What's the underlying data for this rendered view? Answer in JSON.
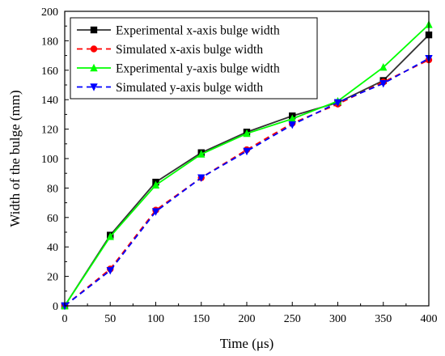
{
  "chart_data": {
    "type": "line",
    "xlabel": "Time (μs)",
    "ylabel": "Width of the bulge (mm)",
    "xlim": [
      0,
      400
    ],
    "ylim": [
      0,
      200
    ],
    "xticks": [
      0,
      50,
      100,
      150,
      200,
      250,
      300,
      350,
      400
    ],
    "yticks": [
      0,
      20,
      40,
      60,
      80,
      100,
      120,
      140,
      160,
      180,
      200
    ],
    "grid": false,
    "legend_position": "top-left",
    "series": [
      {
        "name": "Experimental x-axis bulge width",
        "color": "#333333",
        "marker": "square",
        "dash": "solid",
        "x": [
          0,
          50,
          100,
          150,
          200,
          250,
          300,
          350,
          400
        ],
        "y": [
          0,
          48,
          84,
          104,
          118,
          129,
          138,
          153,
          184
        ]
      },
      {
        "name": "Simulated x-axis bulge width",
        "color": "#ff0000",
        "marker": "circle",
        "dash": "dashed",
        "x": [
          0,
          50,
          100,
          150,
          200,
          250,
          300,
          350,
          400
        ],
        "y": [
          0,
          25,
          65,
          87,
          106,
          124,
          137,
          152,
          167
        ]
      },
      {
        "name": "Experimental y-axis bulge width",
        "color": "#00ff00",
        "marker": "triangle-up",
        "dash": "solid",
        "x": [
          0,
          50,
          100,
          150,
          200,
          250,
          300,
          350,
          400
        ],
        "y": [
          0,
          47,
          82,
          103,
          117,
          127,
          139,
          162,
          191
        ]
      },
      {
        "name": "Simulated y-axis bulge width",
        "color": "#0000ff",
        "marker": "triangle-down",
        "dash": "dashed",
        "x": [
          0,
          50,
          100,
          150,
          200,
          250,
          300,
          350,
          400
        ],
        "y": [
          0,
          24,
          64,
          87,
          105,
          123,
          138,
          151,
          168
        ]
      }
    ]
  }
}
